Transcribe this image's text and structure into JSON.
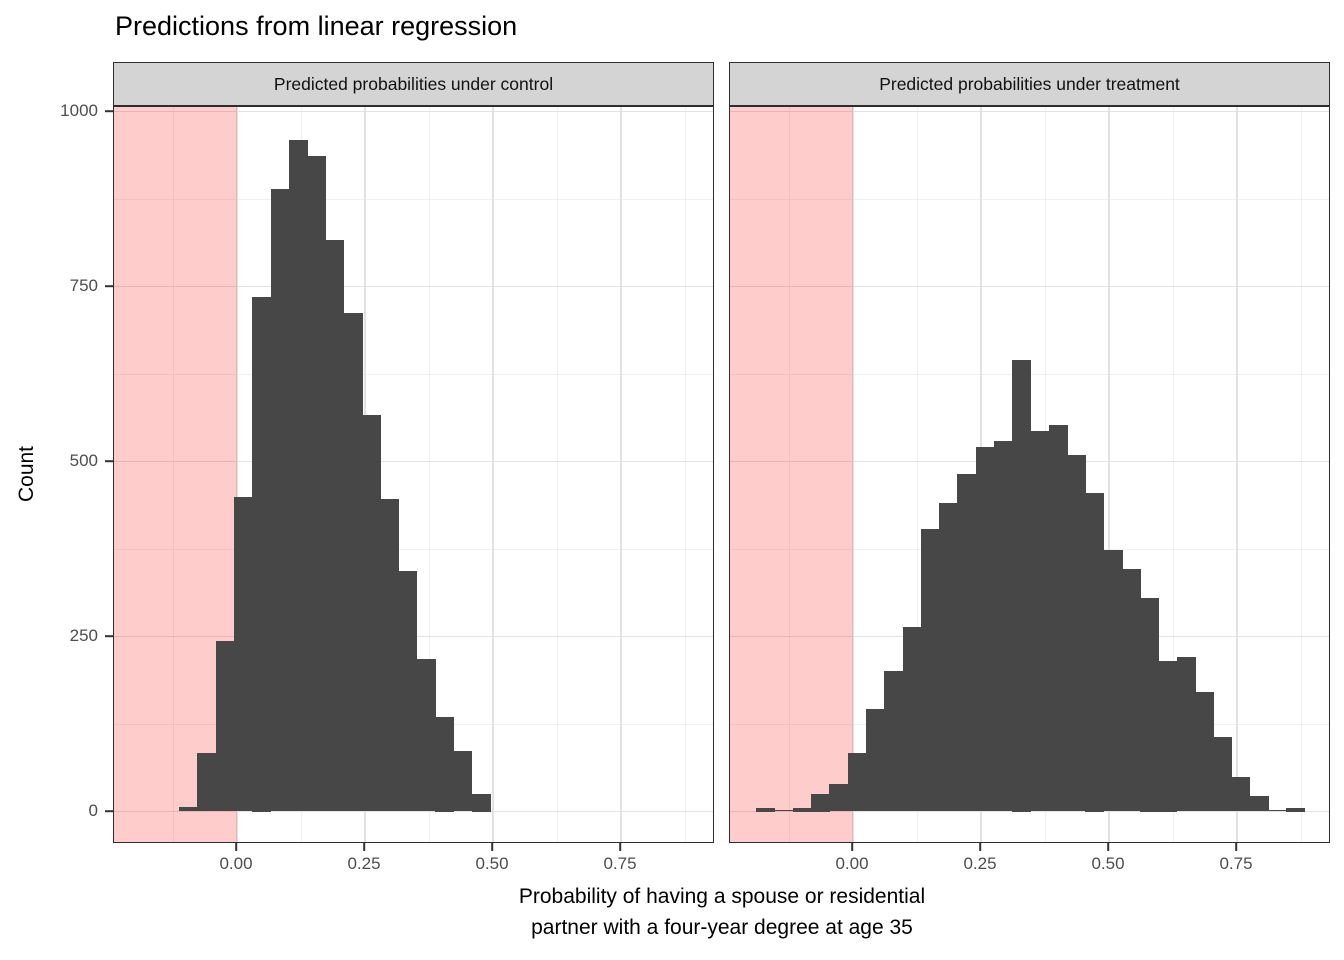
{
  "title": "Predictions from linear regression",
  "axes": {
    "y_label": "Count",
    "x_label_line1": "Probability of having a spouse or residential",
    "x_label_line2": "partner with a four-year degree at age 35",
    "y_tick_labels": [
      "0",
      "250",
      "500",
      "750",
      "1000"
    ],
    "x_tick_labels": [
      "0.00",
      "0.25",
      "0.50",
      "0.75"
    ]
  },
  "colors": {
    "bar_fill": "#474747",
    "shaded_region": "rgba(255,0,0,0.2)",
    "strip_background": "#d4d4d4",
    "panel_border": "#2d2d2d",
    "grid_major": "#e2e2e2",
    "grid_minor": "#f0f0f0",
    "axis_text": "#4d4d4d"
  },
  "chart_data": {
    "type": "bar",
    "subtype": "faceted-histogram",
    "title": "Predictions from linear regression",
    "xlabel": "Probability of having a spouse or residential partner with a four-year degree at age 35",
    "ylabel": "Count",
    "xlim": [
      -0.24,
      0.934
    ],
    "ylim": [
      0,
      1000
    ],
    "x_tick_values": [
      0,
      0.25,
      0.5,
      0.75
    ],
    "y_tick_values": [
      0,
      250,
      500,
      750,
      1000
    ],
    "x_minor_values": [
      -0.125,
      0.125,
      0.375,
      0.625,
      0.875
    ],
    "y_minor_values": [
      125,
      375,
      625,
      875
    ],
    "grid": "major-and-minor",
    "legend_position": "none",
    "shaded_region": {
      "x_min": -0.24,
      "x_max": 0.0,
      "note": "negative-probability region highlighted pink in both facets"
    },
    "facets": [
      {
        "label": "Predicted probabilities under control",
        "bin_start": -0.1127,
        "bin_width": 0.0357,
        "counts": [
          6,
          83,
          244,
          449,
          735,
          889,
          959,
          936,
          817,
          712,
          567,
          446,
          344,
          218,
          135,
          87,
          25
        ]
      },
      {
        "label": "Predicted probabilities under treatment",
        "bin_start": -0.1885,
        "bin_width": 0.0357,
        "counts": [
          5,
          2,
          5,
          25,
          39,
          84,
          146,
          201,
          264,
          404,
          441,
          482,
          521,
          529,
          645,
          543,
          552,
          509,
          455,
          373,
          346,
          305,
          215,
          221,
          171,
          106,
          49,
          22,
          2,
          5
        ]
      }
    ]
  }
}
